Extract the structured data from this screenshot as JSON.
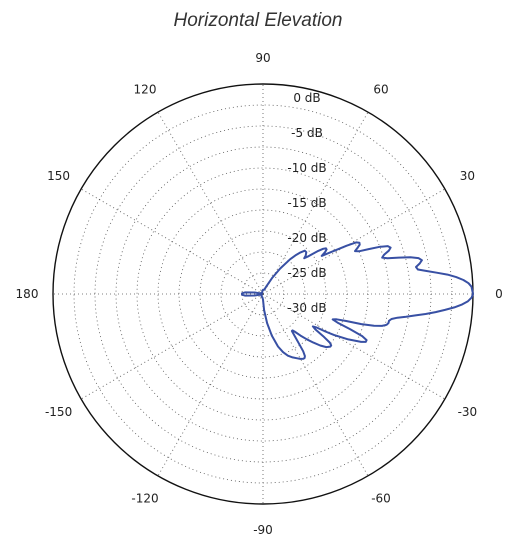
{
  "chart_data": {
    "type": "polar",
    "title": "Horizontal Elevation",
    "angle_unit": "degrees",
    "angle_tick_labels": [
      {
        "angle": 0,
        "label": "0"
      },
      {
        "angle": 30,
        "label": "30"
      },
      {
        "angle": 60,
        "label": "60"
      },
      {
        "angle": 90,
        "label": "90"
      },
      {
        "angle": 120,
        "label": "120"
      },
      {
        "angle": 150,
        "label": "150"
      },
      {
        "angle": 180,
        "label": "180"
      },
      {
        "angle": -150,
        "label": "-150"
      },
      {
        "angle": -120,
        "label": "-120"
      },
      {
        "angle": -90,
        "label": "-90"
      },
      {
        "angle": -60,
        "label": "-60"
      },
      {
        "angle": -30,
        "label": "-30"
      }
    ],
    "radial_unit": "dB",
    "radial_range": [
      -30,
      0
    ],
    "radial_tick_labels": [
      {
        "value": 0,
        "label": "0 dB"
      },
      {
        "value": -5,
        "label": "-5 dB"
      },
      {
        "value": -10,
        "label": "-10 dB"
      },
      {
        "value": -15,
        "label": "-15 dB"
      },
      {
        "value": -20,
        "label": "-20 dB"
      },
      {
        "value": -25,
        "label": "-25 dB"
      },
      {
        "value": -30,
        "label": "-30 dB"
      }
    ],
    "grid": true,
    "line_color": "#3850a4",
    "series": [
      {
        "points": [
          [
            0,
            0.0
          ],
          [
            2,
            -0.2
          ],
          [
            3,
            -0.6
          ],
          [
            4,
            -1.3
          ],
          [
            5,
            -2.3
          ],
          [
            6,
            -3.5
          ],
          [
            7,
            -5.0
          ],
          [
            8,
            -6.4
          ],
          [
            9,
            -7.6
          ],
          [
            10,
            -7.8
          ],
          [
            11,
            -7.2
          ],
          [
            12,
            -6.8
          ],
          [
            13,
            -7.2
          ],
          [
            14,
            -8.3
          ],
          [
            15,
            -9.9
          ],
          [
            16,
            -11.5
          ],
          [
            17,
            -12.2
          ],
          [
            18,
            -11.8
          ],
          [
            19,
            -11.0
          ],
          [
            20,
            -10.6
          ],
          [
            21,
            -10.9
          ],
          [
            22,
            -12.0
          ],
          [
            23,
            -13.6
          ],
          [
            24,
            -15.0
          ],
          [
            25,
            -15.5
          ],
          [
            26,
            -15.0
          ],
          [
            27,
            -14.5
          ],
          [
            28,
            -14.4
          ],
          [
            29,
            -14.8
          ],
          [
            30,
            -16.2
          ],
          [
            32,
            -19.0
          ],
          [
            33,
            -20.0
          ],
          [
            34,
            -19.3
          ],
          [
            35,
            -18.9
          ],
          [
            36,
            -18.9
          ],
          [
            37,
            -19.3
          ],
          [
            38,
            -20.0
          ],
          [
            40,
            -21.7
          ],
          [
            41,
            -22.2
          ],
          [
            42,
            -21.8
          ],
          [
            44,
            -21.4
          ],
          [
            46,
            -21.4
          ],
          [
            48,
            -22.0
          ],
          [
            50,
            -22.8
          ],
          [
            52,
            -23.7
          ],
          [
            56,
            -25.6
          ],
          [
            60,
            -27.3
          ],
          [
            66,
            -28.8
          ],
          [
            72,
            -29.3
          ],
          [
            80,
            -29.4
          ],
          [
            90,
            -29.4
          ],
          [
            100,
            -29.5
          ],
          [
            110,
            -29.7
          ],
          [
            120,
            -29.8
          ],
          [
            135,
            -29.8
          ],
          [
            150,
            -29.7
          ],
          [
            160,
            -29.8
          ],
          [
            165,
            -29.8
          ],
          [
            170,
            -28.8
          ],
          [
            175,
            -27.4
          ],
          [
            178,
            -27.0
          ],
          [
            180,
            -27.0
          ],
          [
            -178,
            -27.0
          ],
          [
            -175,
            -27.4
          ],
          [
            -170,
            -28.8
          ],
          [
            -165,
            -29.8
          ],
          [
            -150,
            -29.8
          ],
          [
            -120,
            -29.6
          ],
          [
            -100,
            -29.5
          ],
          [
            -90,
            -29.2
          ],
          [
            -86,
            -27.7
          ],
          [
            -82,
            -25.8
          ],
          [
            -78,
            -23.9
          ],
          [
            -74,
            -22.2
          ],
          [
            -71,
            -21.2
          ],
          [
            -68,
            -20.5
          ],
          [
            -65,
            -20.0
          ],
          [
            -62,
            -19.6
          ],
          [
            -60,
            -19.3
          ],
          [
            -58,
            -19.1
          ],
          [
            -57,
            -19.1
          ],
          [
            -56,
            -19.3
          ],
          [
            -55,
            -20.0
          ],
          [
            -54,
            -21.3
          ],
          [
            -53,
            -22.5
          ],
          [
            -52,
            -23.3
          ],
          [
            -51,
            -23.3
          ],
          [
            -50,
            -23.0
          ],
          [
            -48,
            -22.0
          ],
          [
            -46,
            -21.0
          ],
          [
            -44,
            -20.0
          ],
          [
            -42,
            -19.0
          ],
          [
            -40,
            -18.2
          ],
          [
            -38,
            -17.8
          ],
          [
            -37,
            -17.8
          ],
          [
            -36,
            -18.2
          ],
          [
            -35,
            -19.5
          ],
          [
            -34,
            -21.0
          ],
          [
            -33,
            -21.5
          ],
          [
            -32,
            -21.0
          ],
          [
            -31,
            -19.6
          ],
          [
            -30,
            -18.3
          ],
          [
            -28,
            -16.2
          ],
          [
            -26,
            -14.4
          ],
          [
            -25,
            -13.8
          ],
          [
            -24,
            -13.8
          ],
          [
            -23,
            -14.6
          ],
          [
            -22,
            -16.6
          ],
          [
            -21,
            -18.6
          ],
          [
            -20,
            -19.4
          ],
          [
            -19,
            -18.9
          ],
          [
            -18,
            -17.5
          ],
          [
            -17,
            -15.3
          ],
          [
            -16,
            -13.5
          ],
          [
            -15,
            -12.4
          ],
          [
            -14,
            -11.8
          ],
          [
            -13,
            -11.6
          ],
          [
            -12,
            -11.6
          ],
          [
            -11,
            -11.3
          ],
          [
            -10,
            -10.5
          ],
          [
            -9,
            -9.3
          ],
          [
            -8,
            -8.0
          ],
          [
            -7,
            -6.6
          ],
          [
            -6,
            -5.2
          ],
          [
            -5,
            -3.9
          ],
          [
            -4,
            -2.6
          ],
          [
            -3,
            -1.5
          ],
          [
            -2,
            -0.7
          ],
          [
            -1,
            -0.2
          ],
          [
            0,
            0.0
          ]
        ]
      }
    ]
  }
}
